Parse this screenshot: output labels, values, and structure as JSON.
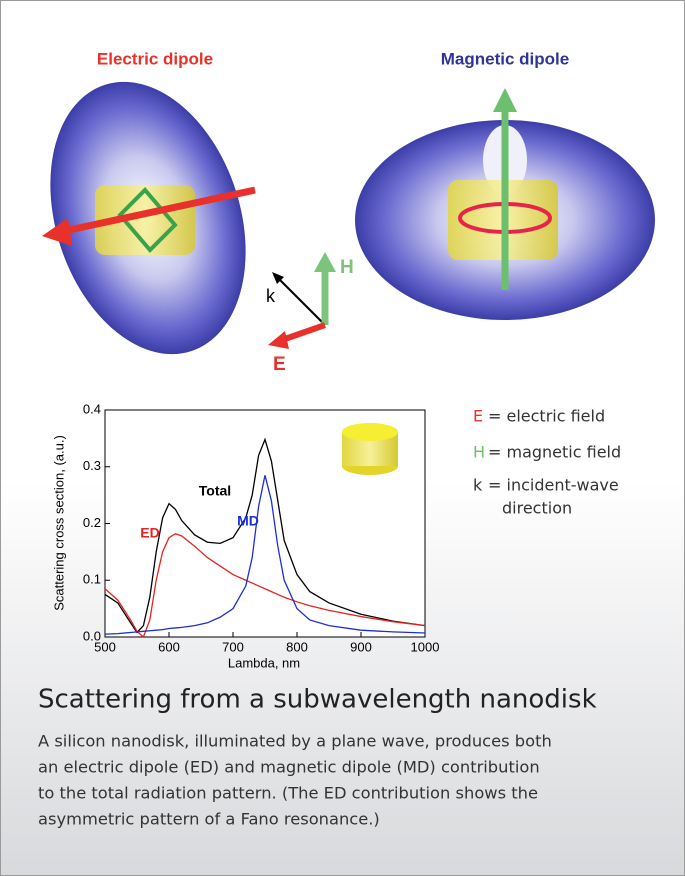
{
  "illustration": {
    "left_label": "Electric dipole",
    "right_label": "Magnetic dipole",
    "axes": {
      "e": "E",
      "h": "H",
      "k": "k"
    }
  },
  "field_notes": [
    {
      "symbol": "E",
      "text": "= electric field"
    },
    {
      "symbol": "H",
      "text": "= magnetic field"
    },
    {
      "symbol": "k",
      "text": "= incident-wave",
      "text2": "direction"
    }
  ],
  "chart_data": {
    "type": "line",
    "xlabel": "Lambda, nm",
    "ylabel": "Scattering cross section, (a.u.)",
    "x": [
      500,
      520,
      540,
      550,
      560,
      570,
      580,
      590,
      600,
      610,
      620,
      640,
      660,
      680,
      700,
      720,
      730,
      740,
      750,
      760,
      770,
      780,
      800,
      820,
      850,
      900,
      950,
      1000
    ],
    "series": [
      {
        "name": "Total",
        "color": "#000000",
        "values": [
          0.075,
          0.06,
          0.025,
          0.008,
          0.02,
          0.07,
          0.15,
          0.21,
          0.235,
          0.225,
          0.205,
          0.18,
          0.167,
          0.165,
          0.175,
          0.21,
          0.25,
          0.32,
          0.348,
          0.31,
          0.24,
          0.17,
          0.11,
          0.08,
          0.06,
          0.04,
          0.028,
          0.02
        ]
      },
      {
        "name": "ED",
        "color": "#e8231f",
        "values": [
          0.085,
          0.065,
          0.03,
          0.01,
          0.0,
          0.03,
          0.1,
          0.15,
          0.175,
          0.182,
          0.178,
          0.16,
          0.14,
          0.125,
          0.11,
          0.1,
          0.095,
          0.09,
          0.085,
          0.08,
          0.075,
          0.07,
          0.062,
          0.055,
          0.047,
          0.036,
          0.027,
          0.02
        ]
      },
      {
        "name": "MD",
        "color": "#1a2fd8",
        "values": [
          0.005,
          0.006,
          0.008,
          0.009,
          0.01,
          0.011,
          0.012,
          0.013,
          0.015,
          0.016,
          0.017,
          0.02,
          0.025,
          0.035,
          0.05,
          0.09,
          0.14,
          0.23,
          0.285,
          0.24,
          0.16,
          0.1,
          0.05,
          0.03,
          0.02,
          0.012,
          0.009,
          0.007
        ]
      }
    ],
    "xlim": [
      500,
      1000
    ],
    "xticks": [
      500,
      600,
      700,
      800,
      900,
      1000
    ],
    "ylim": [
      0,
      0.4
    ],
    "yticks": [
      {
        "value": 0,
        "label": "0.0"
      },
      0.1,
      0.2,
      0.3,
      0.4
    ]
  },
  "caption": {
    "title": "Scattering from a subwavelength nanodisk",
    "lines": [
      "A silicon nanodisk, illuminated by a plane wave, produces both",
      "an electric dipole (ED) and magnetic dipole (MD) contribution",
      "to the total radiation pattern. (The ED contribution shows the",
      "asymmetric pattern of a Fano resonance.)"
    ]
  }
}
